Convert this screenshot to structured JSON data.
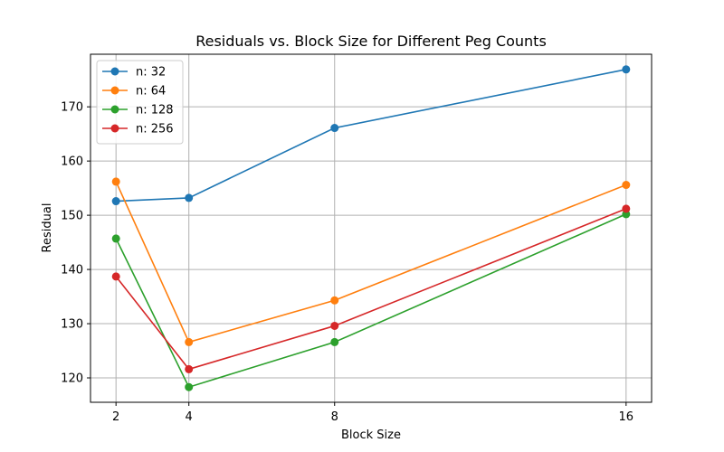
{
  "chart_data": {
    "type": "line",
    "title": "Residuals vs. Block Size for Different Peg Counts",
    "xlabel": "Block Size",
    "ylabel": "Residual",
    "x": [
      2,
      4,
      8,
      16
    ],
    "xlim": [
      1.3,
      16.7
    ],
    "ylim": [
      115.5,
      179.7
    ],
    "x_ticks": [
      2,
      4,
      8,
      16
    ],
    "y_ticks": [
      120,
      130,
      140,
      150,
      160,
      170
    ],
    "grid": true,
    "legend_position": "top-left",
    "series": [
      {
        "name": "n: 32",
        "color": "#1f77b4",
        "values": [
          152.6,
          153.2,
          166.1,
          176.9
        ]
      },
      {
        "name": "n: 64",
        "color": "#ff7f0e",
        "values": [
          156.2,
          126.6,
          134.3,
          155.6
        ]
      },
      {
        "name": "n: 128",
        "color": "#2ca02c",
        "values": [
          145.7,
          118.3,
          126.6,
          150.2
        ]
      },
      {
        "name": "n: 256",
        "color": "#d62728",
        "values": [
          138.7,
          121.6,
          129.6,
          151.2
        ]
      }
    ]
  }
}
